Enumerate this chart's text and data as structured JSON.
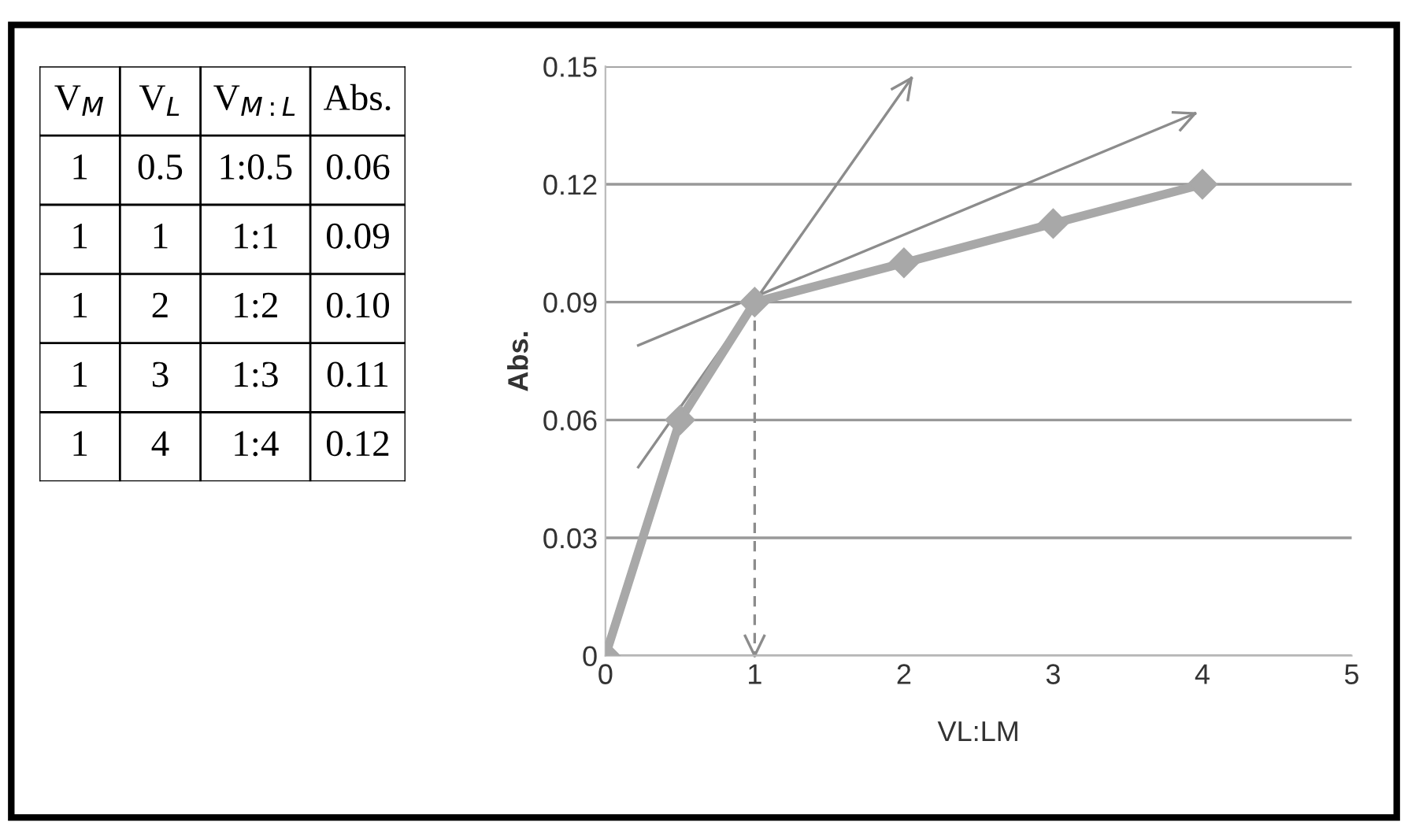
{
  "chart_data": {
    "type": "line",
    "xlabel": "VL:LM",
    "ylabel": "Abs.",
    "annotations": [
      "V$_{M}$",
      "V$_{L}$",
      "V$_{M:L}$",
      "Abs.",
      "1",
      "0.5",
      "1:0.5",
      "0.06",
      "1",
      "1",
      "1:1",
      "0.09",
      "1",
      "2",
      "1:2",
      "0.10",
      "1",
      "3",
      "1:3",
      "0.11",
      "1",
      "4",
      "1:4",
      "0.12"
    ],
    "x": [
      0,
      0.5,
      1,
      2,
      3,
      4
    ],
    "series": [
      {
        "color": "#a8a8a8",
        "values": [
          0,
          0.06,
          0.09,
          0.1,
          0.11,
          0.12
        ]
      },
      {
        "type": "line",
        "color": "#8c8c8c",
        "x": [
          0.22,
          2.05
        ],
        "values": [
          0.048,
          0.147
        ],
        "marker": "none"
      },
      {
        "type": "line",
        "color": "#8c8c8c",
        "x": [
          0.22,
          3.95
        ],
        "values": [
          0.079,
          0.138
        ],
        "marker": "none"
      },
      {
        "type": "line",
        "color": "#8c8c8c",
        "x": [
          1,
          1
        ],
        "values": [
          0.09,
          0
        ],
        "marker": "none",
        "line_style": "dashed"
      }
    ],
    "marker": "diamond",
    "line_style": "solid",
    "xlim": [
      0,
      5
    ],
    "ylim": [
      0,
      0.15
    ],
    "xticks": [
      0,
      1,
      2,
      3,
      4,
      5
    ],
    "yticks": [
      0,
      0.03,
      0.06,
      0.09,
      0.12,
      0.15
    ],
    "grid": "y",
    "legend": false
  }
}
